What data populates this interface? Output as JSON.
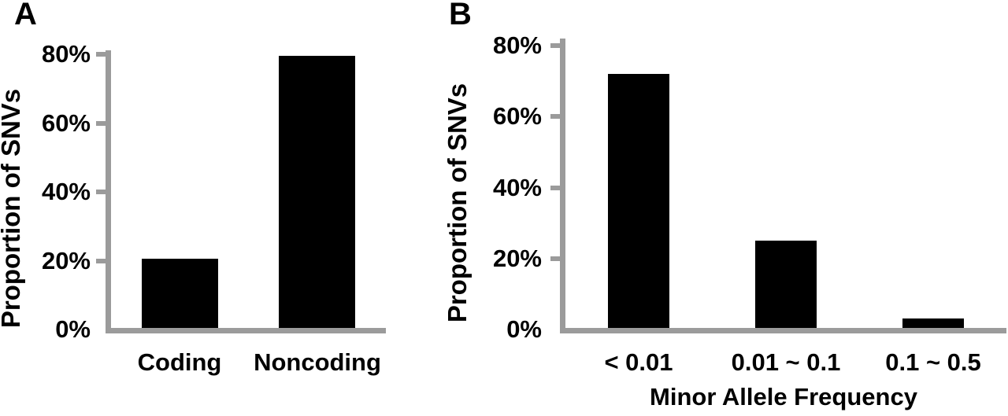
{
  "figure": {
    "background_color": "#ffffff",
    "bar_color": "#000000",
    "axis_color": "#9b9b9b",
    "text_color": "#000000"
  },
  "chart_data": [
    {
      "type": "bar",
      "panel_label": "A",
      "title": "",
      "ylabel": "Proportion of SNVs",
      "xlabel": "",
      "categories": [
        "Coding",
        "Noncoding"
      ],
      "values": [
        20.5,
        79.5
      ],
      "yticks": [
        0,
        20,
        40,
        60,
        80
      ],
      "ytick_labels": [
        "0%",
        "20%",
        "40%",
        "60%",
        "80%"
      ],
      "ylim": [
        0,
        80
      ],
      "grid": false,
      "legend": false
    },
    {
      "type": "bar",
      "panel_label": "B",
      "title": "",
      "ylabel": "Proportion of SNVs",
      "xlabel": "Minor Allele Frequency",
      "categories": [
        "< 0.01",
        "0.01 ~ 0.1",
        "0.1 ~ 0.5"
      ],
      "values": [
        72,
        25,
        3
      ],
      "yticks": [
        0,
        20,
        40,
        60,
        80
      ],
      "ytick_labels": [
        "0%",
        "20%",
        "40%",
        "60%",
        "80%"
      ],
      "ylim": [
        0,
        80
      ],
      "grid": false,
      "legend": false
    }
  ]
}
